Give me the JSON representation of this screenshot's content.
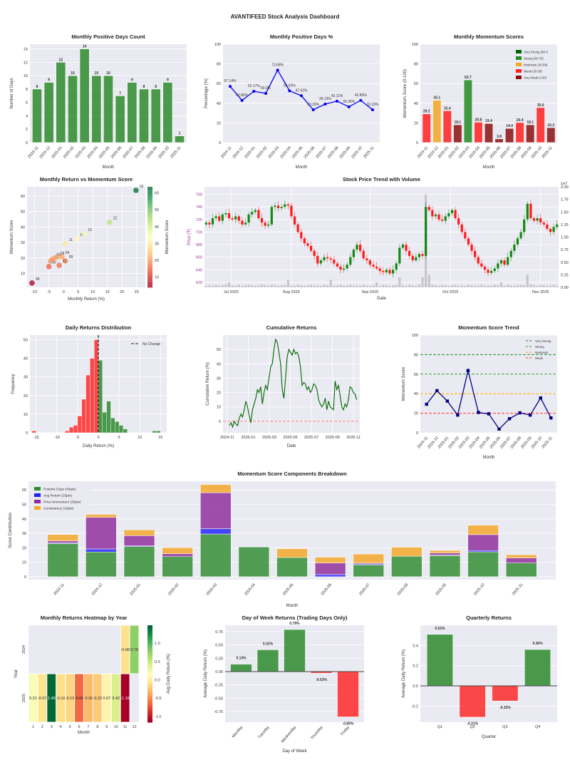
{
  "dashboard_title": "AVANTIFEED Stock Analysis Dashboard",
  "months": [
    "2024-11",
    "2024-12",
    "2025-01",
    "2025-02",
    "2025-03",
    "2025-04",
    "2025-05",
    "2025-06",
    "2025-07",
    "2025-08",
    "2025-09",
    "2025-10",
    "2025-11"
  ],
  "chart_data": [
    {
      "type": "bar",
      "title": "Monthly Positive Days Count",
      "xlabel": "Month",
      "ylabel": "Number of Days",
      "ylim": [
        0,
        14.7
      ],
      "categories": [
        "2024-11",
        "2024-12",
        "2025-01",
        "2025-02",
        "2025-03",
        "2025-04",
        "2025-05",
        "2025-06",
        "2025-07",
        "2025-08",
        "2025-09",
        "2025-10",
        "2025-11"
      ],
      "values": [
        8,
        9,
        12,
        10,
        14,
        10,
        10,
        7,
        9,
        8,
        8,
        9,
        1
      ],
      "color": "#2e8b2e"
    },
    {
      "type": "line",
      "title": "Monthly Positive Days %",
      "xlabel": "Month",
      "ylabel": "Percentage (%)",
      "ylim": [
        0,
        100
      ],
      "categories": [
        "2024-11",
        "2024-12",
        "2025-01",
        "2025-02",
        "2025-03",
        "2025-04",
        "2025-05",
        "2025-06",
        "2025-07",
        "2025-08",
        "2025-09",
        "2025-10",
        "2025-11"
      ],
      "values": [
        57.14,
        42.86,
        52.17,
        50.0,
        73.68,
        52.63,
        47.62,
        33.33,
        39.13,
        42.11,
        36.36,
        42.86,
        33.33
      ],
      "labels": [
        "57.14%",
        "42.86%",
        "52.17%",
        "50.0%",
        "73.68%",
        "52.63%",
        "47.62%",
        "33.33%",
        "39.13%",
        "42.11%",
        "36.36%",
        "42.86%",
        "33.33%"
      ],
      "color": "#0000ee"
    },
    {
      "type": "bar",
      "title": "Monthly Momentum Scores",
      "xlabel": "Month",
      "ylabel": "Momentum Score (0-100)",
      "ylim": [
        0,
        100
      ],
      "categories": [
        "2024-11",
        "2024-12",
        "2025-01",
        "2025-02",
        "2025-03",
        "2025-04",
        "2025-05",
        "2025-06",
        "2025-07",
        "2025-08",
        "2025-09",
        "2025-10",
        "2025-11"
      ],
      "values": [
        29.2,
        43.1,
        32.4,
        18.1,
        63.7,
        20.8,
        19.4,
        3.8,
        14.4,
        20.4,
        18.1,
        35.6,
        15.2
      ],
      "value_labels": [
        "29.2",
        "43.1",
        "32.4",
        "18.1",
        "63.7",
        "20.8",
        "19.4",
        "3.8",
        "14.4",
        "20.4",
        "18.1",
        "35.6",
        "15.2"
      ],
      "legend": [
        {
          "label": "Very Strong (80+)",
          "color": "#006400"
        },
        {
          "label": "Strong (60-79)",
          "color": "#228b22"
        },
        {
          "label": "Moderate (40-59)",
          "color": "#f5a623"
        },
        {
          "label": "Weak (20-39)",
          "color": "#ff2020"
        },
        {
          "label": "Very Weak (<20)",
          "color": "#8b1010"
        }
      ],
      "bar_category": [
        3,
        2,
        3,
        4,
        1,
        3,
        4,
        4,
        4,
        3,
        4,
        3,
        4
      ]
    },
    {
      "type": "scatter",
      "title": "Monthly Return vs Momentum Score",
      "xlabel": "Monthly Return (%)",
      "ylabel": "Momentum Score",
      "colorbar_label": "Momentum Score",
      "xlim": [
        -12.5,
        28
      ],
      "ylim": [
        1,
        66
      ],
      "xticks": [
        -10,
        -5,
        0,
        5,
        10,
        15,
        20,
        25
      ],
      "yticks": [
        10,
        20,
        30,
        40,
        50,
        60
      ],
      "cbar_ticks": [
        10,
        20,
        30,
        40,
        50,
        60
      ],
      "cbar_range": [
        3.8,
        63.7
      ],
      "points": [
        {
          "x": 0.6,
          "y": 29.2,
          "label": "11"
        },
        {
          "x": 15.7,
          "y": 43.1,
          "label": "12"
        },
        {
          "x": 4.5,
          "y": 32.4,
          "label": "01"
        },
        {
          "x": -4.4,
          "y": 18.1,
          "label": "02"
        },
        {
          "x": 24.8,
          "y": 63.7,
          "label": "03"
        },
        {
          "x": -0.6,
          "y": 20.8,
          "label": "04"
        },
        {
          "x": -3.6,
          "y": 19.4,
          "label": "05"
        },
        {
          "x": -10.8,
          "y": 3.8,
          "label": "06"
        },
        {
          "x": -5.0,
          "y": 14.4,
          "label": "07"
        },
        {
          "x": -2.3,
          "y": 20.4,
          "label": "08"
        },
        {
          "x": 0.6,
          "y": 18.1,
          "label": "09"
        },
        {
          "x": 7.1,
          "y": 35.6,
          "label": "10"
        },
        {
          "x": -1.5,
          "y": 15.2,
          "label": "11"
        }
      ]
    },
    {
      "type": "candlestick",
      "title": "Stock Price Trend with Volume",
      "xlabel": "Date",
      "ylabel": "Price (₹)",
      "ylim": [
        612,
        772
      ],
      "yticks": [
        620,
        640,
        660,
        680,
        700,
        720,
        740,
        760
      ],
      "volume_ylim": [
        0,
        2.0
      ],
      "volume_ticks": [
        "0.00",
        "0.25",
        "0.50",
        "0.75",
        "1.00",
        "1.25",
        "1.50",
        "1.75",
        "2.00"
      ],
      "volume_scale": "1e7",
      "date_ticks": [
        {
          "label": "Jul 2025",
          "index": 7.6
        },
        {
          "label": "Aug 2025",
          "index": 26
        },
        {
          "label": "Sep 2025",
          "index": 50
        },
        {
          "label": "Oct 2025",
          "index": 74.5
        },
        {
          "label": "Nov 2025",
          "index": 102
        }
      ],
      "close": [
        715,
        712,
        722,
        725,
        718,
        728,
        730,
        722,
        720,
        725,
        718,
        712,
        715,
        728,
        732,
        735,
        722,
        715,
        710,
        712,
        740,
        742,
        738,
        740,
        744,
        742,
        725,
        712,
        700,
        690,
        682,
        678,
        670,
        662,
        650,
        655,
        660,
        658,
        656,
        650,
        645,
        640,
        642,
        648,
        660,
        672,
        680,
        670,
        658,
        655,
        648,
        645,
        642,
        638,
        636,
        640,
        634,
        640,
        650,
        675,
        680,
        670,
        662,
        655,
        660,
        665,
        662,
        740,
        735,
        725,
        728,
        720,
        718,
        725,
        730,
        735,
        722,
        712,
        700,
        690,
        680,
        670,
        660,
        650,
        645,
        640,
        635,
        638,
        642,
        650,
        655,
        648,
        660,
        670,
        680,
        690,
        700,
        720,
        745,
        722,
        718,
        722,
        715,
        712,
        705,
        700,
        708,
        712
      ],
      "volume": [
        0.03,
        0.04,
        0.03,
        0.05,
        0.03,
        0.04,
        0.06,
        0.1,
        0.04,
        0.03,
        0.05,
        0.03,
        0.04,
        0.05,
        0.04,
        0.03,
        0.04,
        0.06,
        0.04,
        0.03,
        0.05,
        0.04,
        0.03,
        0.04,
        0.05,
        0.15,
        0.04,
        0.03,
        0.05,
        0.04,
        0.03,
        0.04,
        0.05,
        0.03,
        0.04,
        0.03,
        0.05,
        0.04,
        0.15,
        0.03,
        0.04,
        0.05,
        0.03,
        0.04,
        0.05,
        0.03,
        0.04,
        0.03,
        0.05,
        0.04,
        0.03,
        0.04,
        0.1,
        0.03,
        0.05,
        0.04,
        0.03,
        0.04,
        0.05,
        0.2,
        0.04,
        0.03,
        0.05,
        0.04,
        0.03,
        0.06,
        0.2,
        1.85,
        0.25,
        0.05,
        0.04,
        0.03,
        0.05,
        0.04,
        0.03,
        0.04,
        0.05,
        0.03,
        0.04,
        0.03,
        0.05,
        0.04,
        0.03,
        0.04,
        0.05,
        0.03,
        0.04,
        0.03,
        0.05,
        0.04,
        0.1,
        0.03,
        0.05,
        0.04,
        0.03,
        0.04,
        0.05,
        0.04,
        0.25,
        0.06,
        0.04,
        0.03,
        0.05,
        0.04,
        0.03,
        0.04,
        0.05,
        0.03
      ]
    },
    {
      "type": "histogram",
      "title": "Daily Returns Distribution",
      "xlabel": "Daily Return (%)",
      "ylabel": "Frequency",
      "xlim": [
        -16.5,
        16.5
      ],
      "ylim": [
        0,
        52.5
      ],
      "xticks": [
        -15,
        -10,
        -5,
        0,
        5,
        10,
        15
      ],
      "yticks": [
        0,
        10,
        20,
        30,
        40,
        50
      ],
      "legend_label": "No Change",
      "bins": [
        {
          "x0": -16,
          "x1": -15,
          "count": 1,
          "sign": "neg"
        },
        {
          "x0": -8,
          "x1": -7,
          "count": 1,
          "sign": "neg"
        },
        {
          "x0": -7,
          "x1": -6,
          "count": 3,
          "sign": "neg"
        },
        {
          "x0": -6,
          "x1": -5,
          "count": 4,
          "sign": "neg"
        },
        {
          "x0": -5,
          "x1": -4,
          "count": 9,
          "sign": "neg"
        },
        {
          "x0": -4,
          "x1": -3,
          "count": 18,
          "sign": "neg"
        },
        {
          "x0": -3,
          "x1": -2,
          "count": 31,
          "sign": "neg"
        },
        {
          "x0": -2,
          "x1": -1,
          "count": 40,
          "sign": "neg"
        },
        {
          "x0": -1,
          "x1": 0,
          "count": 50,
          "sign": "neg"
        },
        {
          "x0": 0,
          "x1": 1,
          "count": 39,
          "sign": "pos"
        },
        {
          "x0": 1,
          "x1": 2,
          "count": 11,
          "sign": "pos"
        },
        {
          "x0": 2,
          "x1": 3,
          "count": 17,
          "sign": "pos"
        },
        {
          "x0": 3,
          "x1": 4,
          "count": 8,
          "sign": "pos"
        },
        {
          "x0": 4,
          "x1": 5,
          "count": 6,
          "sign": "pos"
        },
        {
          "x0": 5,
          "x1": 6,
          "count": 4,
          "sign": "pos"
        },
        {
          "x0": 6,
          "x1": 7,
          "count": 2,
          "sign": "pos"
        },
        {
          "x0": 13,
          "x1": 14,
          "count": 1,
          "sign": "pos"
        },
        {
          "x0": 14,
          "x1": 15,
          "count": 1,
          "sign": "pos"
        }
      ]
    },
    {
      "type": "line",
      "title": "Cumulative Returns",
      "xlabel": "Date",
      "ylabel": "Cumulative Return (%)",
      "xlim": [
        -0.4,
        12.6
      ],
      "ylim": [
        -8,
        60
      ],
      "yticks": [
        0,
        10,
        20,
        30,
        40,
        50
      ],
      "xticks": [
        {
          "label": "2024-11",
          "pos": 0
        },
        {
          "label": "2025-01",
          "pos": 2
        },
        {
          "label": "2025-03",
          "pos": 4
        },
        {
          "label": "2025-05",
          "pos": 6
        },
        {
          "label": "2025-07",
          "pos": 8
        },
        {
          "label": "2025-09",
          "pos": 10
        },
        {
          "label": "2025-11",
          "pos": 12
        }
      ],
      "x_start": 0.2,
      "x_end": 12.3,
      "values": [
        -3,
        -1,
        -4,
        0,
        -2,
        -3,
        2,
        5,
        3,
        8,
        14,
        10,
        4,
        -1,
        8,
        12,
        16,
        22,
        20,
        24,
        12,
        20,
        25,
        22,
        30,
        38,
        40,
        50,
        57,
        55,
        48,
        40,
        22,
        16,
        30,
        45,
        50,
        48,
        46,
        50,
        47,
        48,
        45,
        38,
        25,
        27,
        26,
        22,
        24,
        20,
        22,
        26,
        25,
        22,
        15,
        12,
        10,
        12,
        16,
        8,
        14,
        10,
        9,
        8,
        28,
        22,
        25,
        18,
        10,
        8,
        12,
        10,
        15,
        24,
        23,
        20,
        19,
        15
      ]
    },
    {
      "type": "line",
      "title": "Momentum Score Trend",
      "xlabel": "Month",
      "ylabel": "Momentum Score",
      "ylim": [
        0,
        100
      ],
      "yticks": [
        0,
        20,
        40,
        60,
        80,
        100
      ],
      "categories": [
        "2024-11",
        "2024-12",
        "2025-01",
        "2025-02",
        "2025-03",
        "2025-04",
        "2025-05",
        "2025-06",
        "2025-07",
        "2025-08",
        "2025-09",
        "2025-10",
        "2025-11"
      ],
      "values": [
        29.2,
        43.1,
        32.4,
        18.1,
        63.7,
        20.8,
        19.4,
        3.8,
        14.4,
        20.4,
        18.1,
        35.6,
        15.2
      ],
      "thresholds": [
        {
          "label": "Very Strong",
          "value": 80,
          "color": "#228b22"
        },
        {
          "label": "Strong",
          "value": 60,
          "color": "#32a032"
        },
        {
          "label": "Moderate",
          "value": 40,
          "color": "#ffa500"
        },
        {
          "label": "Weak",
          "value": 20,
          "color": "#ff3030"
        }
      ]
    },
    {
      "type": "bar",
      "stacked": true,
      "title": "Momentum Score Components Breakdown",
      "xlabel": "Month",
      "ylabel": "Score Contribution",
      "ylim": [
        -2,
        66
      ],
      "yticks": [
        0,
        10,
        20,
        30,
        40,
        50,
        60
      ],
      "categories": [
        "2024-11",
        "2024-12",
        "2025-01",
        "2025-02",
        "2025-03",
        "2025-04",
        "2025-05",
        "2025-06",
        "2025-07",
        "2025-08",
        "2025-09",
        "2025-10",
        "2025-11"
      ],
      "series": [
        {
          "name": "Positive Days (40pts)",
          "color": "#2e8b2e",
          "values": [
            22.9,
            17.1,
            20.9,
            13.9,
            29.5,
            20.6,
            13.3,
            0,
            8.2,
            14.2,
            14.6,
            17.2,
            9.5
          ]
        },
        {
          "name": "Avg Return (25pts)",
          "color": "#2020ff",
          "values": [
            0.5,
            2.1,
            0.5,
            0,
            3.7,
            0.2,
            0,
            1.5,
            0.6,
            0,
            0.3,
            0.9,
            0
          ]
        },
        {
          "name": "Price Momentum (25pts)",
          "color": "#8e2b9a",
          "values": [
            1.3,
            21.8,
            7.0,
            2.0,
            24.9,
            0,
            0,
            8.0,
            0.6,
            0,
            1.5,
            11.0,
            3.5
          ],
          "value_note": ""
        },
        {
          "name": "Consistency (10pts)",
          "color": "#f5a623",
          "values": [
            4.5,
            2.1,
            4.0,
            4.2,
            5.6,
            0,
            6.1,
            4.0,
            6.3,
            6.2,
            1.7,
            6.5,
            2.2
          ]
        }
      ]
    },
    {
      "type": "heatmap",
      "title": "Monthly Returns Heatmap by Year",
      "xlabel": "Month",
      "ylabel": "Year",
      "colorbar_label": "Avg Daily Return (%)",
      "x_labels": [
        "1",
        "2",
        "3",
        "4",
        "5",
        "6",
        "7",
        "8",
        "9",
        "10",
        "11",
        "12"
      ],
      "y_labels": [
        "2024",
        "2025"
      ],
      "vrange": [
        -1.16,
        1.49
      ],
      "cbar_ticks": [
        "-1.0",
        "-0.5",
        "0.0",
        "0.5",
        "1.0"
      ],
      "values": [
        [
          null,
          null,
          null,
          null,
          null,
          null,
          null,
          null,
          null,
          null,
          -0.08,
          0.79
        ],
        [
          0.21,
          -0.07,
          1.49,
          -0.1,
          -0.15,
          -0.65,
          -0.3,
          -0.22,
          0.07,
          0.42,
          -1.16,
          null
        ]
      ],
      "labels": [
        [
          null,
          null,
          null,
          null,
          null,
          null,
          null,
          null,
          null,
          null,
          "-0.08",
          "0.79"
        ],
        [
          "0.21",
          "-0.07",
          "1.49",
          "-0.10",
          "-0.15",
          "-0.65",
          "-0.30",
          "-0.22",
          "0.07",
          "0.42",
          "-1.16",
          null
        ]
      ]
    },
    {
      "type": "bar",
      "title": "Day of Week Returns (Trading Days Only)",
      "xlabel": "Day of Week",
      "ylabel": "Average Daily Return (%)",
      "ylim": [
        -0.95,
        0.87
      ],
      "yticks": [
        "-0.75",
        "-0.50",
        "-0.25",
        "0.00",
        "0.25",
        "0.50",
        "0.75"
      ],
      "categories": [
        "Monday",
        "Tuesday",
        "Wednesday",
        "Thursday",
        "Friday"
      ],
      "values": [
        0.14,
        0.41,
        0.79,
        -0.03,
        -0.85
      ],
      "value_labels": [
        "0.14%",
        "0.41%",
        "0.79%",
        "-0.03%",
        "-0.85%"
      ]
    },
    {
      "type": "bar",
      "title": "Quarterly Returns",
      "xlabel": "Quarter",
      "ylabel": "Average Daily Return (%)",
      "ylim": [
        -0.36,
        0.6
      ],
      "yticks": [
        "-0.2",
        "0.0",
        "0.2",
        "0.4"
      ],
      "categories": [
        "Q1",
        "Q2",
        "Q3",
        "Q4"
      ],
      "values": [
        0.51,
        -0.31,
        -0.15,
        0.36
      ],
      "value_labels": [
        "0.51%",
        "-0.31%",
        "-0.15%",
        "0.36%"
      ]
    }
  ]
}
